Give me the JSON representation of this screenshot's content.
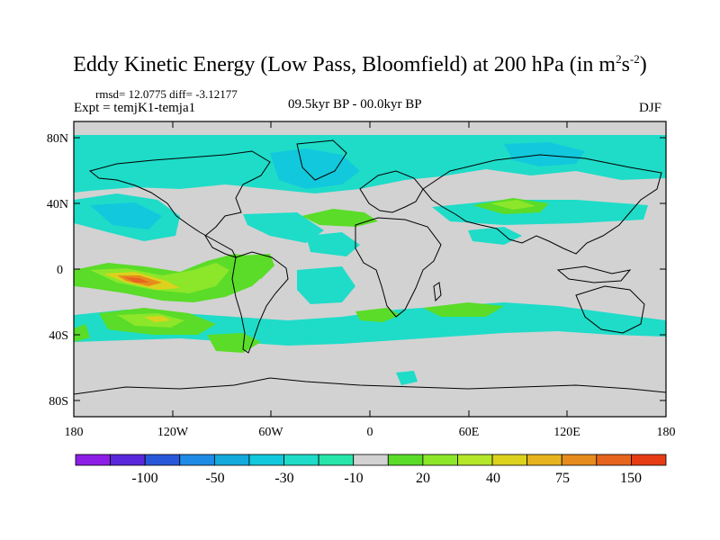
{
  "title": {
    "main": "Eddy Kinetic Energy (Low Pass, Bloomfield) at 200 hPa (in m",
    "sup1": "2",
    "mid": "s",
    "sup2": "-2",
    "end": ")"
  },
  "stats": "rmsd= 12.0775 diff= -3.12177",
  "experiment": "Expt = temjK1-temja1",
  "period": "09.5kyr BP - 00.0kyr BP",
  "season": "DJF",
  "axes": {
    "lon_ticks": [
      "180",
      "120W",
      "60W",
      "0",
      "60E",
      "120E",
      "180"
    ],
    "lat_ticks": [
      "80N",
      "40N",
      "0",
      "40S",
      "80S"
    ]
  },
  "colorbar": {
    "colors": [
      "#8c1ee6",
      "#5a28dc",
      "#2858d8",
      "#1e8ce6",
      "#14aadc",
      "#12c8dc",
      "#1edcc8",
      "#28e6aa",
      "#d2d2d2",
      "#5adc28",
      "#8ce62a",
      "#b4e62a",
      "#dcd21e",
      "#e6b41e",
      "#e68c1e",
      "#e6641e",
      "#e63c14"
    ],
    "labels": [
      "-100",
      "-50",
      "-30",
      "-10",
      "20",
      "40",
      "75",
      "150"
    ]
  },
  "palette": {
    "land_neutral": "#d2d2d2",
    "cyan": "#1edcc8",
    "aqua": "#12c8dc",
    "green": "#5adc28",
    "lime": "#8ce62a",
    "yellow": "#dcd21e",
    "orange": "#e68c1e",
    "redorange": "#e6641e"
  }
}
